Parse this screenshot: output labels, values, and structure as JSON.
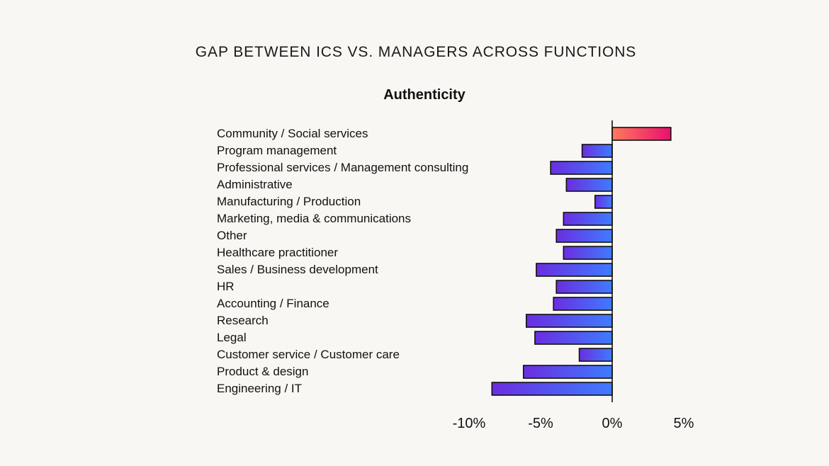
{
  "page_title": "GAP BETWEEN ICS VS. MANAGERS ACROSS FUNCTIONS",
  "colors": {
    "negative_start": "#6a2ee0",
    "negative_end": "#3f7bff",
    "positive_start": "#ff7a5c",
    "positive_end": "#e8106f",
    "bar_stroke": "#111111",
    "axis": "#111111",
    "background": "#f8f7f3"
  },
  "chart_data": {
    "type": "bar",
    "orientation": "horizontal",
    "title": "Authenticity",
    "xlabel": "",
    "ylabel": "",
    "xlim": [
      -10.5,
      6
    ],
    "grid": false,
    "x_ticks": [
      "-10%",
      "-5%",
      "0%",
      "5%"
    ],
    "x_tick_values": [
      -10,
      -5,
      0,
      5
    ],
    "categories": [
      "Community / Social services",
      "Program management",
      "Professional services / Management consulting",
      "Administrative",
      "Manufacturing / Production",
      "Marketing, media & communications",
      "Other",
      "Healthcare practitioner",
      "Sales / Business development",
      "HR",
      "Accounting / Finance",
      "Research",
      "Legal",
      "Customer service / Customer care",
      "Product & design",
      "Engineering / IT"
    ],
    "values": [
      4.1,
      -2.1,
      -4.3,
      -3.2,
      -1.2,
      -3.4,
      -3.9,
      -3.4,
      -5.3,
      -3.9,
      -4.1,
      -6.0,
      -5.4,
      -2.3,
      -6.2,
      -8.4
    ]
  }
}
